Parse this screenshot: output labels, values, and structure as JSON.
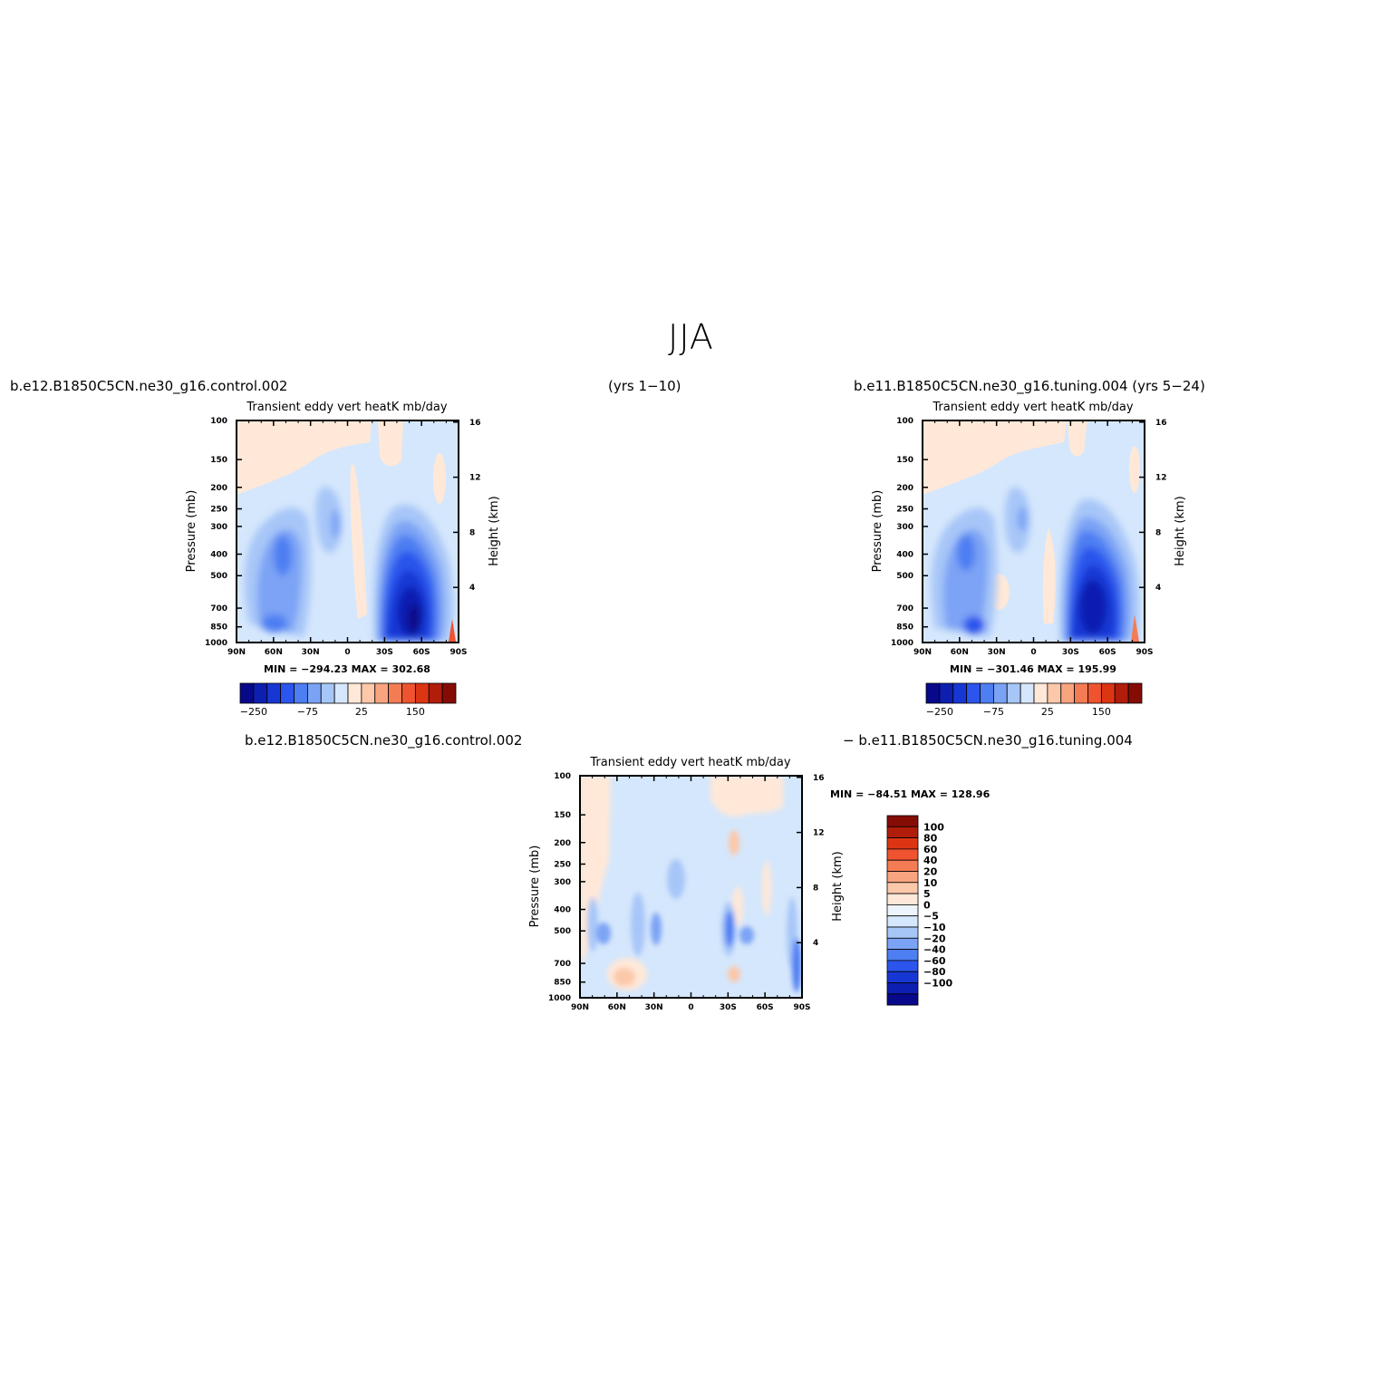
{
  "page": {
    "title": "JJA",
    "case1_label": "b.e12.B1850C5CN.ne30_g16.control.002",
    "case1_years": "(yrs 1−10)",
    "case2_label": "b.e11.B1850C5CN.ne30_g16.tuning.004 (yrs 5−24)",
    "diff_label_left": "b.e12.B1850C5CN.ne30_g16.control.002",
    "diff_label_right": "− b.e11.B1850C5CN.ne30_g16.tuning.004"
  },
  "colors": {
    "mean_palette": [
      "#08088a",
      "#0d1fb0",
      "#1737d4",
      "#2b55ec",
      "#4d7ef2",
      "#7ba3f5",
      "#a7c6f8",
      "#d5e7fc",
      "#ffe8d8",
      "#fcc8aa",
      "#f8a47f",
      "#f47c55",
      "#ef5330",
      "#dc3514",
      "#b01d0a",
      "#850c05"
    ],
    "diff_palette": [
      "#08088a",
      "#0d1fb0",
      "#1737d4",
      "#2b55ec",
      "#4d7ef2",
      "#7ba3f5",
      "#a7c6f8",
      "#d5e7fc",
      "#eef4fc",
      "#ffe8d8",
      "#fcc8aa",
      "#f8a47f",
      "#f47c55",
      "#ef5330",
      "#dc3514",
      "#b01d0a",
      "#850c05"
    ]
  },
  "chart_data": [
    {
      "type": "heatmap",
      "panel": "case1",
      "title": "Transient eddy vert heatK mb/day",
      "ylabel": "Pressure (mb)",
      "ylabel_right": "Height (km)",
      "x_ticks": [
        "90N",
        "60N",
        "30N",
        "0",
        "30S",
        "60S",
        "90S"
      ],
      "x_values": [
        90,
        60,
        30,
        0,
        -30,
        -60,
        -90
      ],
      "y_ticks": [
        100,
        150,
        200,
        250,
        300,
        400,
        500,
        700,
        850,
        1000
      ],
      "y_log_scale": true,
      "y_range": [
        100,
        1000
      ],
      "height_ticks": [
        4,
        8,
        12,
        16
      ],
      "stats": "MIN = −294.23   MAX = 302.68",
      "colorbar_labels": [
        "−250",
        "−75",
        "25",
        "150"
      ],
      "regions": [
        {
          "lat": -55,
          "p": 720,
          "wlat": 38,
          "hp": 0.7,
          "level": 1
        },
        {
          "lat": -52,
          "p": 560,
          "wlat": 32,
          "hp": 0.55,
          "level": 2
        },
        {
          "lat": 55,
          "p": 480,
          "wlat": 24,
          "hp": 0.55,
          "level": 5
        },
        {
          "lat": 8,
          "p": 460,
          "wlat": 10,
          "hp": 0.25,
          "level": 8
        }
      ]
    },
    {
      "type": "heatmap",
      "panel": "case2",
      "title": "Transient eddy vert heatK mb/day",
      "ylabel": "Pressure (mb)",
      "ylabel_right": "Height (km)",
      "x_ticks": [
        "90N",
        "60N",
        "30N",
        "0",
        "30S",
        "60S",
        "90S"
      ],
      "x_values": [
        90,
        60,
        30,
        0,
        -30,
        -60,
        -90
      ],
      "y_ticks": [
        100,
        150,
        200,
        250,
        300,
        400,
        500,
        700,
        850,
        1000
      ],
      "y_log_scale": true,
      "y_range": [
        100,
        1000
      ],
      "height_ticks": [
        4,
        8,
        12,
        16
      ],
      "stats": "MIN = −301.46   MAX = 195.99",
      "colorbar_labels": [
        "−250",
        "−75",
        "25",
        "150"
      ]
    },
    {
      "type": "heatmap",
      "panel": "difference",
      "title": "Transient eddy vert heatK mb/day",
      "ylabel": "Pressure (mb)",
      "ylabel_right": "Height (km)",
      "x_ticks": [
        "90N",
        "60N",
        "30N",
        "0",
        "30S",
        "60S",
        "90S"
      ],
      "x_values": [
        90,
        60,
        30,
        0,
        -30,
        -60,
        -90
      ],
      "y_ticks": [
        100,
        150,
        200,
        250,
        300,
        400,
        500,
        700,
        850,
        1000
      ],
      "y_log_scale": true,
      "y_range": [
        100,
        1000
      ],
      "height_ticks": [
        4,
        8,
        12,
        16
      ],
      "stats": "MIN = −84.51   MAX = 128.96",
      "colorbar_labels": [
        "100",
        "80",
        "60",
        "40",
        "20",
        "10",
        "5",
        "0",
        "−5",
        "−10",
        "−20",
        "−40",
        "−60",
        "−80",
        "−100"
      ]
    }
  ]
}
